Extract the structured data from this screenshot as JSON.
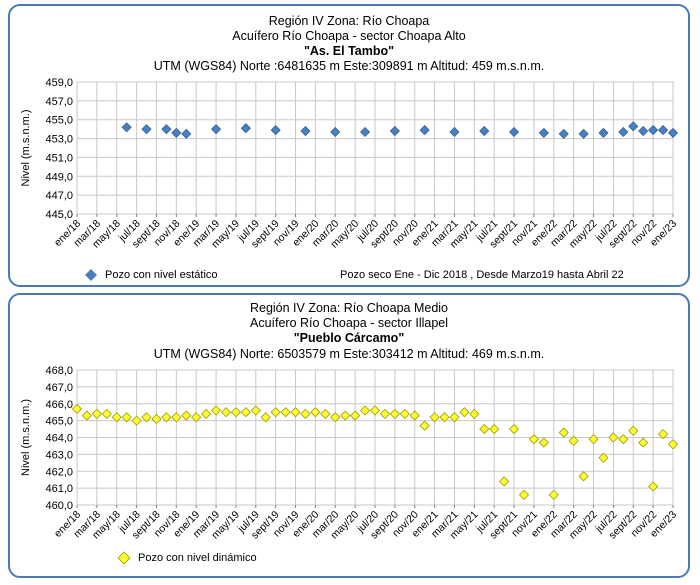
{
  "chart_data": [
    {
      "type": "scatter",
      "header": {
        "line1": "Región IV  Zona: Río Choapa",
        "line2": "Acuífero Río Choapa - sector Choapa Alto",
        "line3": "\"As. El Tambo\"",
        "line4": "UTM (WGS84) Norte :6481635 m    Este:309891 m    Altitud: 459 m.s.n.m."
      },
      "ylabel": "Nivel (m.s.n.m.)",
      "ylim": [
        445,
        459
      ],
      "yticks": [
        "445,0",
        "447,0",
        "449,0",
        "451,0",
        "453,0",
        "455,0",
        "457,0",
        "459,0"
      ],
      "xticks": [
        "ene/18",
        "mar/18",
        "may/18",
        "jul/18",
        "sept/18",
        "nov/18",
        "ene/19",
        "mar/19",
        "may/19",
        "jul/19",
        "sept/19",
        "nov/19",
        "ene/20",
        "mar/20",
        "may/20",
        "jul/20",
        "sept/20",
        "nov/20",
        "ene/21",
        "mar/21",
        "may/21",
        "jul/21",
        "sept/21",
        "nov/21",
        "ene/22",
        "mar/22",
        "may/22",
        "jul/22",
        "sept/22",
        "nov/22",
        "ene/23"
      ],
      "x_range_months": [
        0,
        60
      ],
      "grid": true,
      "marker": "diamond",
      "marker_color": "#4a7fc1",
      "legend": "Pozo con nivel estático",
      "note": "Pozo seco  Ene - Dic 2018 , Desde Marzo19  hasta Abril 22",
      "points": [
        {
          "x": "jun/18",
          "y": 454.2
        },
        {
          "x": "ago/18",
          "y": 454.0
        },
        {
          "x": "oct/18",
          "y": 454.0
        },
        {
          "x": "nov/18",
          "y": 453.6
        },
        {
          "x": "dic/18",
          "y": 453.5
        },
        {
          "x": "mar/19",
          "y": 454.0
        },
        {
          "x": "jun/19",
          "y": 454.1
        },
        {
          "x": "sept/19",
          "y": 453.9
        },
        {
          "x": "dic/19",
          "y": 453.8
        },
        {
          "x": "mar/20",
          "y": 453.7
        },
        {
          "x": "jun/20",
          "y": 453.7
        },
        {
          "x": "sept/20",
          "y": 453.8
        },
        {
          "x": "dic/20",
          "y": 453.9
        },
        {
          "x": "mar/21",
          "y": 453.7
        },
        {
          "x": "jun/21",
          "y": 453.8
        },
        {
          "x": "sept/21",
          "y": 453.7
        },
        {
          "x": "dic/21",
          "y": 453.6
        },
        {
          "x": "feb/22",
          "y": 453.5
        },
        {
          "x": "abr/22",
          "y": 453.5
        },
        {
          "x": "jun/22",
          "y": 453.6
        },
        {
          "x": "ago/22",
          "y": 453.7
        },
        {
          "x": "sept/22",
          "y": 454.3
        },
        {
          "x": "oct/22",
          "y": 453.8
        },
        {
          "x": "nov/22",
          "y": 453.9
        },
        {
          "x": "dic/22",
          "y": 453.9
        },
        {
          "x": "ene/23",
          "y": 453.6
        }
      ]
    },
    {
      "type": "scatter",
      "header": {
        "line1": "Región IV  Zona: Río Choapa Medio",
        "line2": "Acuífero Río Choapa - sector Illapel",
        "line3": "\"Pueblo Cárcamo\"",
        "line4": "UTM (WGS84) Norte: 6503579 m   Este:303412 m    Altitud: 469 m.s.n.m."
      },
      "ylabel": "Nivel (m.s.n.m.)",
      "ylim": [
        460,
        468
      ],
      "yticks": [
        "460,0",
        "461,0",
        "462,0",
        "463,0",
        "464,0",
        "465,0",
        "466,0",
        "467,0",
        "468,0"
      ],
      "xticks": [
        "ene/18",
        "mar/18",
        "may/18",
        "jul/18",
        "sept/18",
        "nov/18",
        "ene/19",
        "mar/19",
        "may/19",
        "jul/19",
        "sept/19",
        "nov/19",
        "ene/20",
        "mar/20",
        "may/20",
        "jul/20",
        "sept/20",
        "nov/20",
        "ene/21",
        "mar/21",
        "may/21",
        "jul/21",
        "sept/21",
        "nov/21",
        "ene/22",
        "mar/22",
        "may/22",
        "jul/22",
        "sept/22",
        "nov/22",
        "ene/23"
      ],
      "x_range_months": [
        0,
        60
      ],
      "grid": true,
      "marker": "diamond",
      "marker_color": "#ffff33",
      "legend": "Pozo con nivel dinámico",
      "points": [
        {
          "x": "ene/18",
          "y": 465.7
        },
        {
          "x": "feb/18",
          "y": 465.3
        },
        {
          "x": "mar/18",
          "y": 465.4
        },
        {
          "x": "abr/18",
          "y": 465.4
        },
        {
          "x": "may/18",
          "y": 465.2
        },
        {
          "x": "jun/18",
          "y": 465.2
        },
        {
          "x": "jul/18",
          "y": 465.0
        },
        {
          "x": "ago/18",
          "y": 465.2
        },
        {
          "x": "sept/18",
          "y": 465.1
        },
        {
          "x": "oct/18",
          "y": 465.2
        },
        {
          "x": "nov/18",
          "y": 465.2
        },
        {
          "x": "dic/18",
          "y": 465.3
        },
        {
          "x": "ene/19",
          "y": 465.2
        },
        {
          "x": "feb/19",
          "y": 465.4
        },
        {
          "x": "mar/19",
          "y": 465.6
        },
        {
          "x": "abr/19",
          "y": 465.5
        },
        {
          "x": "may/19",
          "y": 465.5
        },
        {
          "x": "jun/19",
          "y": 465.5
        },
        {
          "x": "jul/19",
          "y": 465.6
        },
        {
          "x": "ago/19",
          "y": 465.2
        },
        {
          "x": "sept/19",
          "y": 465.5
        },
        {
          "x": "oct/19",
          "y": 465.5
        },
        {
          "x": "nov/19",
          "y": 465.5
        },
        {
          "x": "dic/19",
          "y": 465.4
        },
        {
          "x": "ene/20",
          "y": 465.5
        },
        {
          "x": "feb/20",
          "y": 465.4
        },
        {
          "x": "mar/20",
          "y": 465.2
        },
        {
          "x": "abr/20",
          "y": 465.3
        },
        {
          "x": "may/20",
          "y": 465.3
        },
        {
          "x": "jun/20",
          "y": 465.6
        },
        {
          "x": "jul/20",
          "y": 465.6
        },
        {
          "x": "ago/20",
          "y": 465.4
        },
        {
          "x": "sept/20",
          "y": 465.4
        },
        {
          "x": "oct/20",
          "y": 465.4
        },
        {
          "x": "nov/20",
          "y": 465.3
        },
        {
          "x": "dic/20",
          "y": 464.7
        },
        {
          "x": "ene/21",
          "y": 465.2
        },
        {
          "x": "feb/21",
          "y": 465.2
        },
        {
          "x": "mar/21",
          "y": 465.2
        },
        {
          "x": "abr/21",
          "y": 465.5
        },
        {
          "x": "may/21",
          "y": 465.4
        },
        {
          "x": "jun/21",
          "y": 464.5
        },
        {
          "x": "jul/21",
          "y": 464.5
        },
        {
          "x": "ago/21",
          "y": 461.4
        },
        {
          "x": "sept/21",
          "y": 464.5
        },
        {
          "x": "oct/21",
          "y": 460.6
        },
        {
          "x": "nov/21",
          "y": 463.9
        },
        {
          "x": "dic/21",
          "y": 463.7
        },
        {
          "x": "ene/22",
          "y": 460.6
        },
        {
          "x": "feb/22",
          "y": 464.3
        },
        {
          "x": "mar/22",
          "y": 463.8
        },
        {
          "x": "abr/22",
          "y": 461.7
        },
        {
          "x": "may/22",
          "y": 463.9
        },
        {
          "x": "jun/22",
          "y": 462.8
        },
        {
          "x": "jul/22",
          "y": 464.0
        },
        {
          "x": "ago/22",
          "y": 463.9
        },
        {
          "x": "sept/22",
          "y": 464.4
        },
        {
          "x": "oct/22",
          "y": 463.7
        },
        {
          "x": "nov/22",
          "y": 461.1
        },
        {
          "x": "dic/22",
          "y": 464.2
        },
        {
          "x": "ene/23",
          "y": 463.6
        }
      ]
    }
  ]
}
